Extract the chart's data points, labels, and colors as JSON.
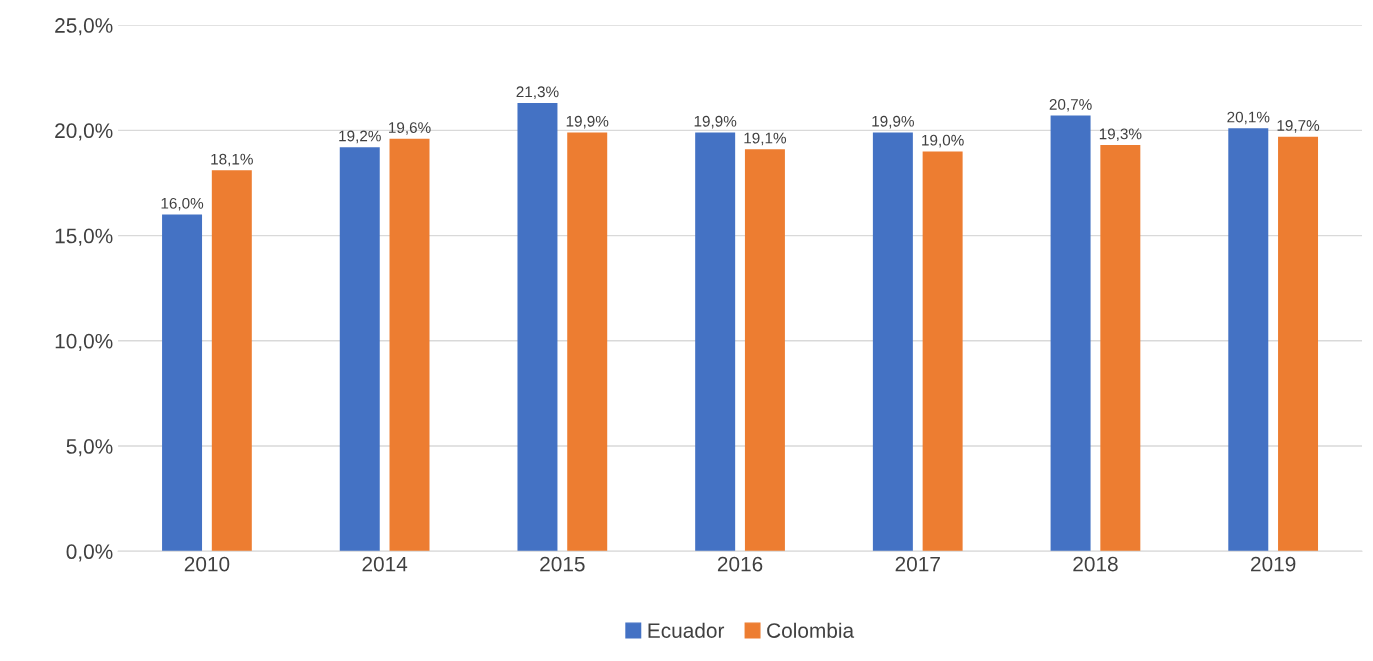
{
  "chart_data": {
    "type": "bar",
    "categories": [
      "2010",
      "2014",
      "2015",
      "2016",
      "2017",
      "2018",
      "2019"
    ],
    "series": [
      {
        "name": "Ecuador",
        "color": "#4472c4",
        "values": [
          16.0,
          19.2,
          21.3,
          19.9,
          19.9,
          20.7,
          20.1
        ],
        "value_labels": [
          "16,0%",
          "19,2%",
          "21,3%",
          "19,9%",
          "19,9%",
          "20,7%",
          "20,1%"
        ]
      },
      {
        "name": "Colombia",
        "color": "#ed7d31",
        "values": [
          18.1,
          19.6,
          19.9,
          19.1,
          19.0,
          19.3,
          19.7
        ],
        "value_labels": [
          "18,1%",
          "19,6%",
          "19,9%",
          "19,1%",
          "19,0%",
          "19,3%",
          "19,7%"
        ]
      }
    ],
    "ylim": [
      0,
      25
    ],
    "yticks": [
      {
        "value": 0,
        "label": "0,0%"
      },
      {
        "value": 5,
        "label": "5,0%"
      },
      {
        "value": 10,
        "label": "10,0%"
      },
      {
        "value": 15,
        "label": "15,0%"
      },
      {
        "value": 20,
        "label": "20,0%"
      },
      {
        "value": 25,
        "label": "25,0%"
      }
    ],
    "grid": "y",
    "legend": "bottom"
  }
}
